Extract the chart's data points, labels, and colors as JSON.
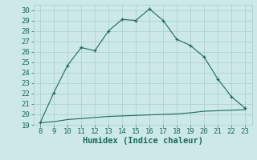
{
  "xlabel": "Humidex (Indice chaleur)",
  "bg_color": "#cce8e8",
  "line_color": "#1a6b5a",
  "grid_color": "#aacece",
  "marker": "+",
  "x_main": [
    8,
    9,
    10,
    11,
    12,
    13,
    14,
    15,
    16,
    17,
    18,
    19,
    20,
    21,
    22,
    23
  ],
  "y_main": [
    19.2,
    22.1,
    24.7,
    26.4,
    26.1,
    28.0,
    29.1,
    29.0,
    30.1,
    29.0,
    27.2,
    26.6,
    25.5,
    23.4,
    21.7,
    20.6
  ],
  "x_flat": [
    8,
    9,
    10,
    11,
    12,
    13,
    14,
    15,
    16,
    17,
    18,
    19,
    20,
    21,
    22,
    23
  ],
  "y_flat": [
    19.2,
    19.3,
    19.5,
    19.6,
    19.7,
    19.8,
    19.85,
    19.9,
    19.95,
    20.0,
    20.05,
    20.15,
    20.3,
    20.35,
    20.4,
    20.45
  ],
  "xlim": [
    7.5,
    23.5
  ],
  "ylim": [
    19,
    30.5
  ],
  "yticks": [
    19,
    20,
    21,
    22,
    23,
    24,
    25,
    26,
    27,
    28,
    29,
    30
  ],
  "xticks": [
    8,
    9,
    10,
    11,
    12,
    13,
    14,
    15,
    16,
    17,
    18,
    19,
    20,
    21,
    22,
    23
  ],
  "tick_label_fontsize": 6.5,
  "xlabel_fontsize": 7.5,
  "linewidth": 0.8,
  "markersize": 3.5,
  "markeredgewidth": 0.9
}
